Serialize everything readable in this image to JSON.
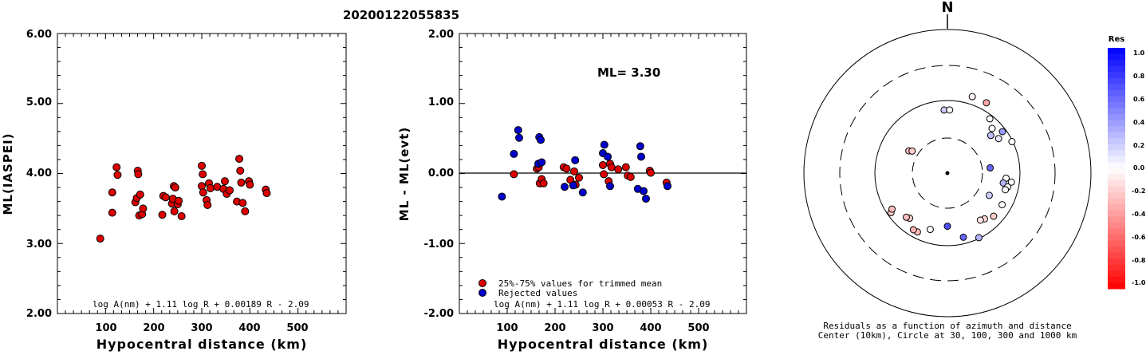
{
  "header": {
    "event_id": "20200122055835"
  },
  "charts": {
    "left": {
      "type": "scatter",
      "ylabel": "ML(IASPEI)",
      "xlabel": "Hypocentral distance (km)",
      "xlim": [
        0,
        600
      ],
      "ylim": [
        2.0,
        6.0
      ],
      "xticks": [
        "100",
        "200",
        "300",
        "400",
        "500"
      ],
      "yticks": [
        "2.00",
        "3.00",
        "4.00",
        "5.00",
        "6.00"
      ],
      "formula": "log A(nm) + 1.11 log R + 0.00189 R - 2.09",
      "points": [
        [
          89,
          3.07
        ],
        [
          114,
          3.44
        ],
        [
          114,
          3.73
        ],
        [
          123,
          4.09
        ],
        [
          125,
          3.98
        ],
        [
          162,
          3.59
        ],
        [
          165,
          3.65
        ],
        [
          167,
          4.04
        ],
        [
          168,
          3.99
        ],
        [
          170,
          3.4
        ],
        [
          172,
          3.7
        ],
        [
          176,
          3.42
        ],
        [
          178,
          3.5
        ],
        [
          218,
          3.41
        ],
        [
          220,
          3.68
        ],
        [
          225,
          3.66
        ],
        [
          238,
          3.57
        ],
        [
          240,
          3.64
        ],
        [
          242,
          3.82
        ],
        [
          245,
          3.8
        ],
        [
          243,
          3.46
        ],
        [
          250,
          3.56
        ],
        [
          252,
          3.61
        ],
        [
          258,
          3.39
        ],
        [
          300,
          4.11
        ],
        [
          300,
          3.82
        ],
        [
          302,
          3.99
        ],
        [
          303,
          3.73
        ],
        [
          310,
          3.62
        ],
        [
          312,
          3.55
        ],
        [
          315,
          3.86
        ],
        [
          318,
          3.79
        ],
        [
          332,
          3.81
        ],
        [
          345,
          3.78
        ],
        [
          348,
          3.89
        ],
        [
          352,
          3.71
        ],
        [
          358,
          3.76
        ],
        [
          373,
          3.6
        ],
        [
          378,
          4.21
        ],
        [
          380,
          4.04
        ],
        [
          382,
          3.87
        ],
        [
          385,
          3.58
        ],
        [
          390,
          3.46
        ],
        [
          398,
          3.89
        ],
        [
          400,
          3.84
        ],
        [
          433,
          3.77
        ],
        [
          435,
          3.72
        ]
      ]
    },
    "right": {
      "type": "scatter",
      "ylabel": "ML - ML(evt)",
      "xlabel": "Hypocentral distance (km)",
      "xlim": [
        0,
        600
      ],
      "ylim": [
        -2.0,
        2.0
      ],
      "xticks": [
        "100",
        "200",
        "300",
        "400",
        "500"
      ],
      "yticks": [
        "-2.00",
        "-1.00",
        "0.00",
        "1.00",
        "2.00"
      ],
      "ml_label": "ML= 3.30",
      "legend": [
        "25%-75% values for trimmed mean",
        "Rejected values"
      ],
      "formula": "log A(nm) + 1.11 log R + 0.00053 R - 2.09",
      "series": [
        {
          "color": "#dd0000",
          "points": [
            [
              114,
              -0.01
            ],
            [
              162,
              0.07
            ],
            [
              166,
              0.09
            ],
            [
              168,
              -0.14
            ],
            [
              172,
              -0.08
            ],
            [
              176,
              -0.14
            ],
            [
              218,
              0.09
            ],
            [
              224,
              0.07
            ],
            [
              232,
              -0.09
            ],
            [
              240,
              0.03
            ],
            [
              243,
              -0.16
            ],
            [
              250,
              -0.06
            ],
            [
              300,
              0.12
            ],
            [
              302,
              -0.01
            ],
            [
              312,
              -0.11
            ],
            [
              315,
              0.14
            ],
            [
              318,
              0.09
            ],
            [
              332,
              0.06
            ],
            [
              348,
              0.09
            ],
            [
              352,
              -0.03
            ],
            [
              358,
              -0.05
            ],
            [
              398,
              0.04
            ],
            [
              400,
              0.01
            ],
            [
              433,
              -0.13
            ]
          ]
        },
        {
          "color": "#0000cc",
          "points": [
            [
              89,
              -0.33
            ],
            [
              114,
              0.28
            ],
            [
              123,
              0.62
            ],
            [
              125,
              0.51
            ],
            [
              165,
              0.14
            ],
            [
              167,
              0.52
            ],
            [
              170,
              0.48
            ],
            [
              172,
              0.16
            ],
            [
              220,
              -0.19
            ],
            [
              238,
              -0.17
            ],
            [
              242,
              0.19
            ],
            [
              258,
              -0.27
            ],
            [
              300,
              0.29
            ],
            [
              303,
              0.41
            ],
            [
              310,
              0.24
            ],
            [
              315,
              -0.18
            ],
            [
              373,
              -0.22
            ],
            [
              378,
              0.39
            ],
            [
              380,
              0.24
            ],
            [
              385,
              -0.25
            ],
            [
              390,
              -0.36
            ],
            [
              435,
              -0.18
            ]
          ]
        }
      ]
    },
    "polar": {
      "type": "scatter",
      "north_label": "N",
      "caption": [
        "Residuals as a function of azimuth and distance",
        "Center (10km), Circle at 30, 100, 300 and 1000 km"
      ],
      "colorbar": {
        "title": "Res",
        "labels": [
          "1.0",
          "0.8",
          "0.6",
          "0.4",
          "0.2",
          "0.0",
          "-0.2",
          "-0.4",
          "-0.6",
          "-0.8",
          "-1.0"
        ]
      },
      "points": [
        {
          "az": 357,
          "dist": 440,
          "res": 0.2
        },
        {
          "az": 2,
          "dist": 440,
          "res": 0.0
        },
        {
          "az": 18,
          "dist": 560,
          "res": -0.05
        },
        {
          "az": 29,
          "dist": 560,
          "res": -0.35
        },
        {
          "az": 38,
          "dist": 480,
          "res": 0.0
        },
        {
          "az": 45,
          "dist": 440,
          "res": 0.0
        },
        {
          "az": 49,
          "dist": 400,
          "res": 0.25
        },
        {
          "az": 53,
          "dist": 480,
          "res": 0.4
        },
        {
          "az": 56,
          "dist": 430,
          "res": 0.1
        },
        {
          "az": 64,
          "dist": 500,
          "res": 0.0
        },
        {
          "az": 83,
          "dist": 300,
          "res": 0.6
        },
        {
          "az": 95,
          "dist": 410,
          "res": 0.0
        },
        {
          "az": 98,
          "dist": 450,
          "res": 0.0
        },
        {
          "az": 100,
          "dist": 395,
          "res": 0.3
        },
        {
          "az": 103,
          "dist": 430,
          "res": 0.0
        },
        {
          "az": 106,
          "dist": 420,
          "res": 0.0
        },
        {
          "az": 118,
          "dist": 330,
          "res": 0.2
        },
        {
          "az": 120,
          "dist": 440,
          "res": 0.0
        },
        {
          "az": 133,
          "dist": 440,
          "res": -0.2
        },
        {
          "az": 141,
          "dist": 410,
          "res": -0.15
        },
        {
          "az": 145,
          "dist": 400,
          "res": -0.1
        },
        {
          "az": 154,
          "dist": 500,
          "res": 0.3
        },
        {
          "az": 166,
          "dist": 460,
          "res": 0.6
        },
        {
          "az": 180,
          "dist": 370,
          "res": 0.7
        },
        {
          "az": 197,
          "dist": 410,
          "res": 0.0
        },
        {
          "az": 207,
          "dist": 460,
          "res": -0.25
        },
        {
          "az": 211,
          "dist": 460,
          "res": -0.3
        },
        {
          "az": 220,
          "dist": 410,
          "res": -0.2
        },
        {
          "az": 223,
          "dist": 420,
          "res": -0.25
        },
        {
          "az": 235,
          "dist": 480,
          "res": -0.2
        },
        {
          "az": 237,
          "dist": 460,
          "res": -0.25
        },
        {
          "az": 300,
          "dist": 310,
          "res": -0.25
        },
        {
          "az": 302,
          "dist": 290,
          "res": -0.2
        }
      ]
    }
  }
}
